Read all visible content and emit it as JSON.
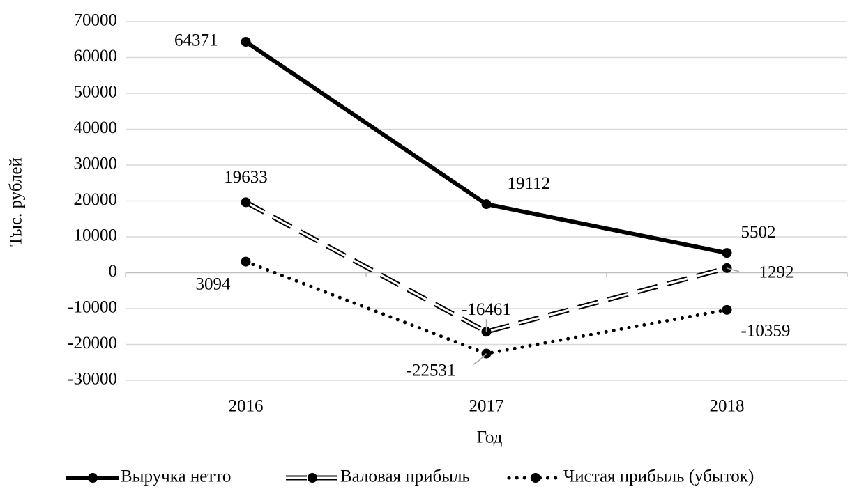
{
  "chart_data": {
    "type": "line",
    "categories": [
      "2016",
      "2017",
      "2018"
    ],
    "series": [
      {
        "name": "Выручка нетто",
        "color": "#000000",
        "style": "solid",
        "values": [
          64371,
          19112,
          5502
        ]
      },
      {
        "name": "Валовая прибыль",
        "color": "#000000",
        "style": "double-dash",
        "values": [
          19633,
          -16461,
          1292
        ]
      },
      {
        "name": "Чистая прибыль (убыток)",
        "color": "#000000",
        "style": "dotted",
        "values": [
          3094,
          -22531,
          -10359
        ]
      }
    ],
    "x_label": "Год",
    "y_label": "Тыс. рублей",
    "ylim": [
      -30000,
      70000
    ],
    "yticks": [
      -30000,
      -20000,
      -10000,
      0,
      10000,
      20000,
      30000,
      40000,
      50000,
      60000,
      70000
    ],
    "grid": true,
    "legend": "bottom"
  }
}
